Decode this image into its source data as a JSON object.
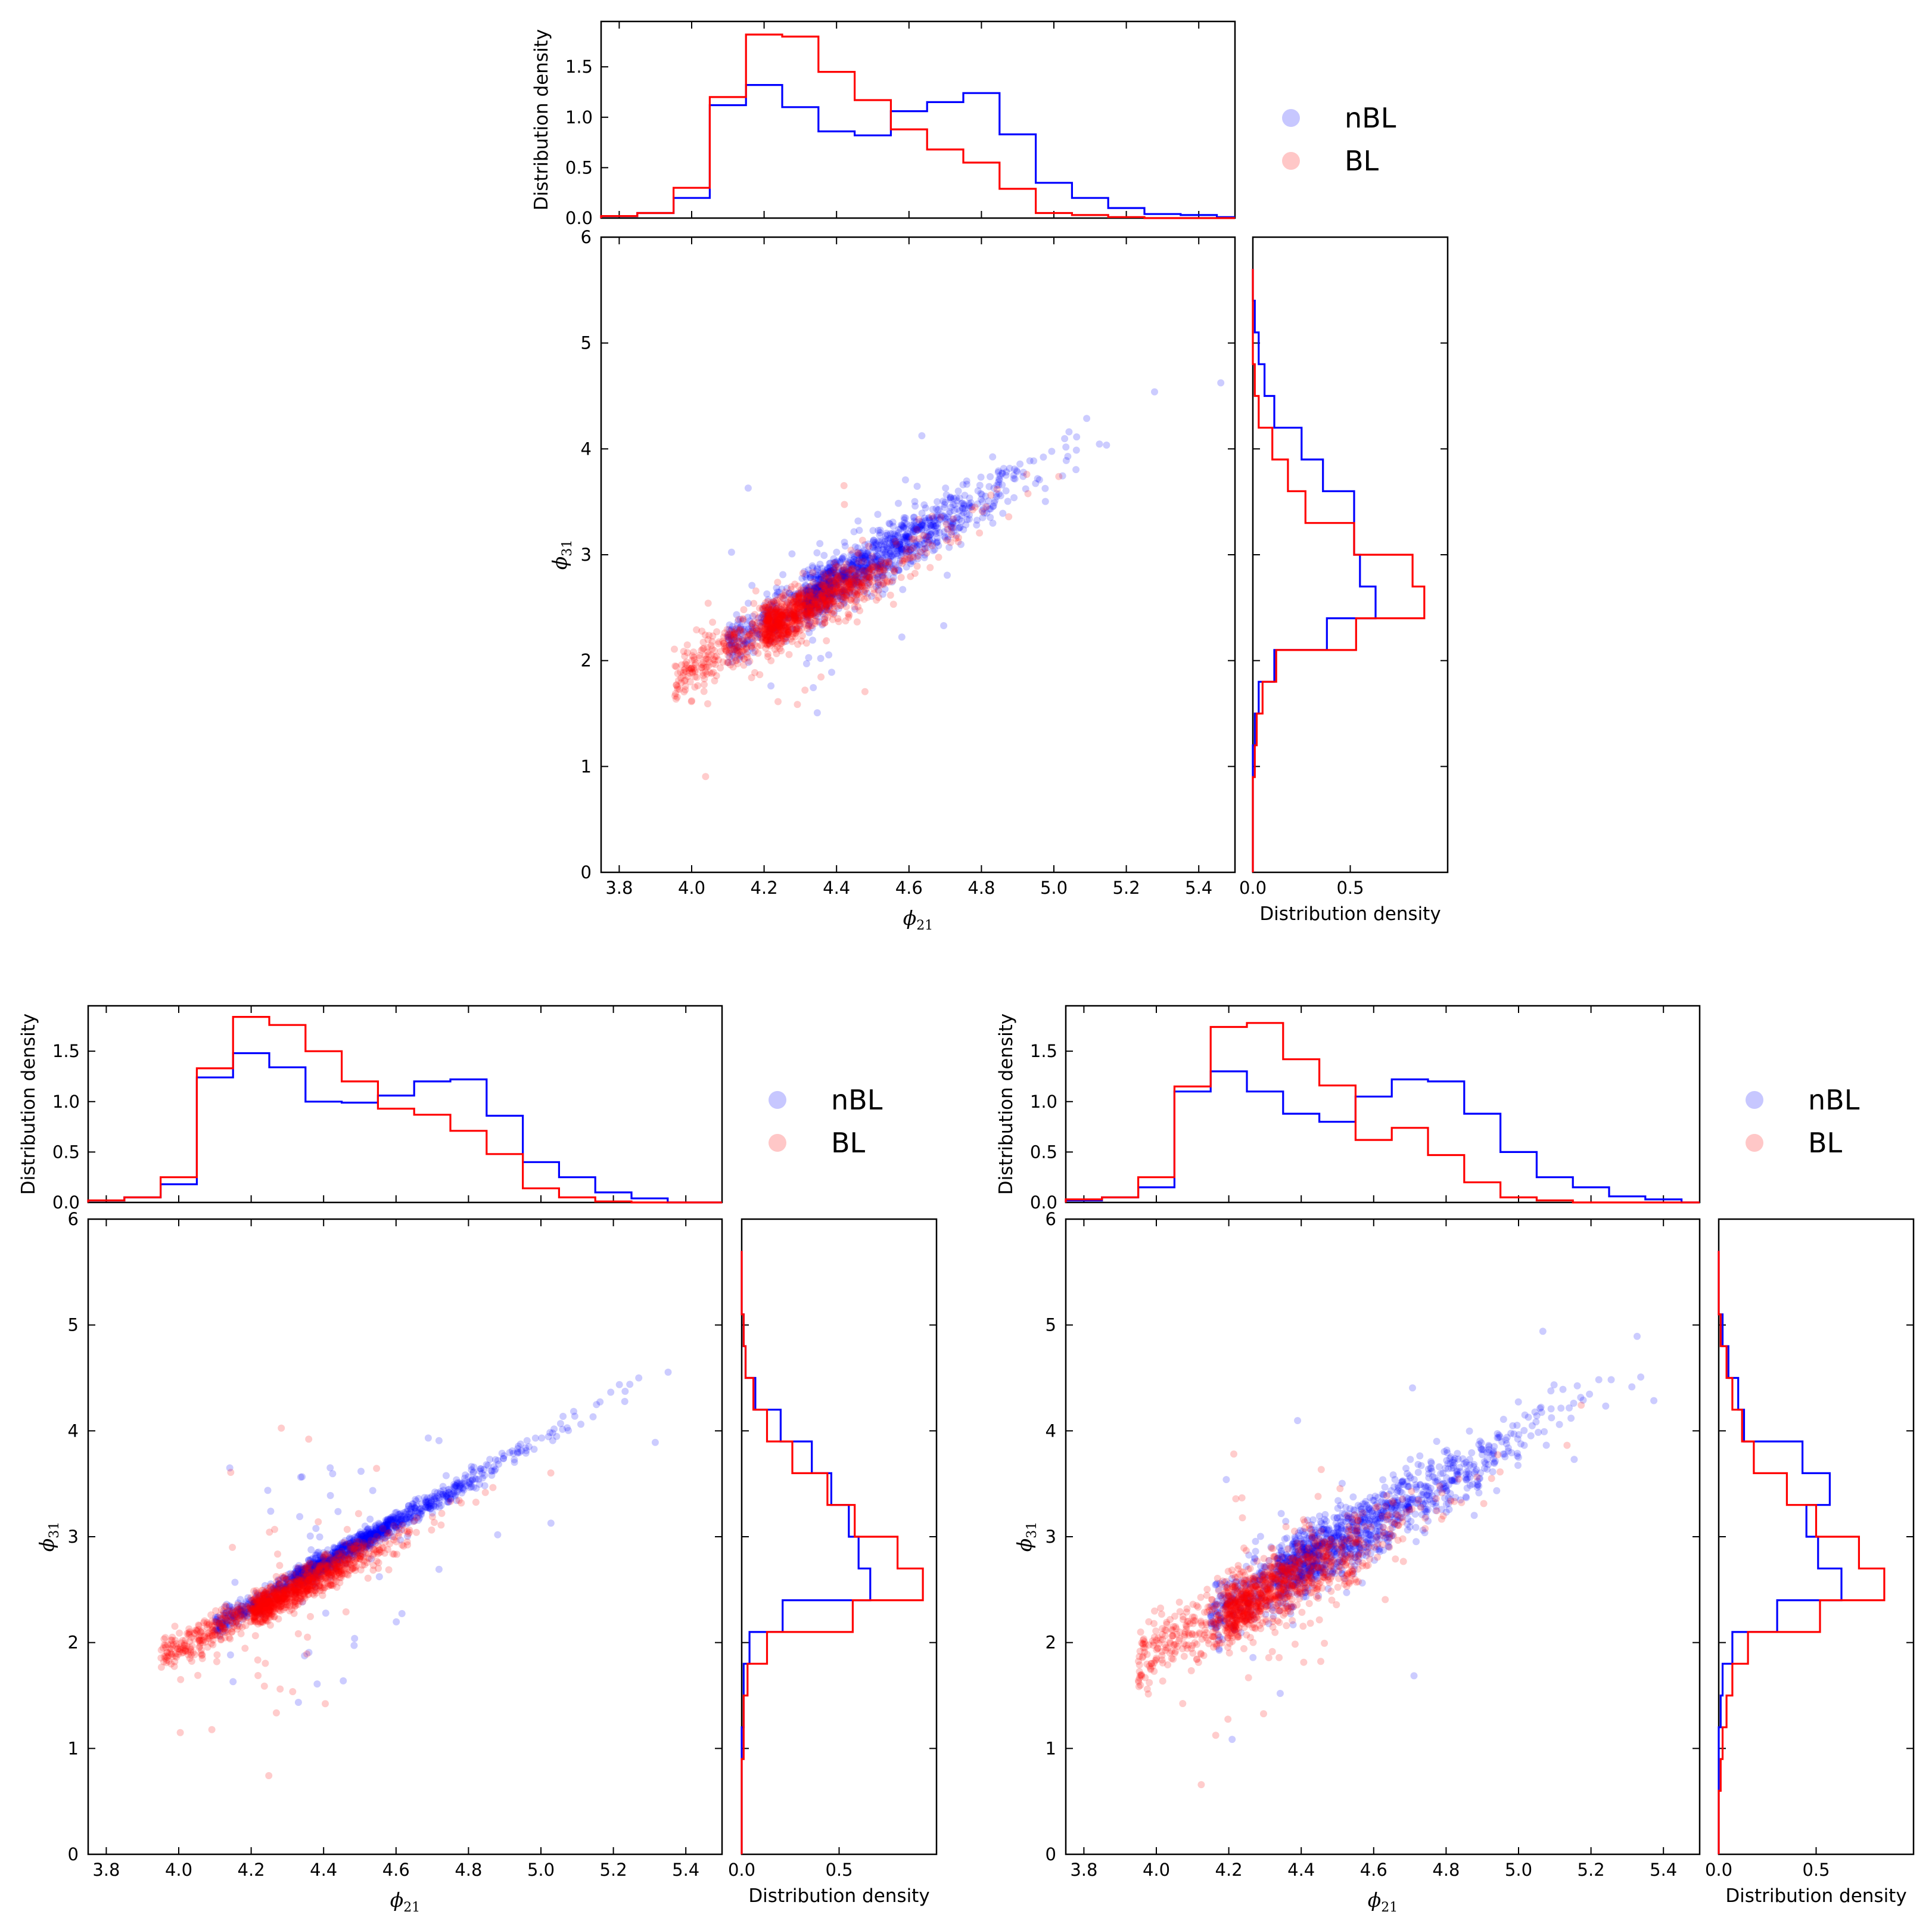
{
  "chart_data": [
    {
      "type": "scatter",
      "title": "",
      "xlabel": "ϕ21",
      "ylabel": "ϕ31",
      "top_hist_ylabel": "Distribution density",
      "right_hist_xlabel": "Distribution density",
      "xlim": [
        3.75,
        5.5
      ],
      "ylim": [
        0,
        6
      ],
      "grid": false,
      "legend": {
        "placement": "right of top histogram",
        "entries": [
          "nBL",
          "BL"
        ]
      },
      "series": [
        {
          "name": "nBL",
          "color": "#0000ff",
          "x_hist": {
            "edges": [
              3.75,
              3.85,
              3.95,
              4.05,
              4.15,
              4.25,
              4.35,
              4.45,
              4.55,
              4.65,
              4.75,
              4.85,
              4.95,
              5.05,
              5.15,
              5.25,
              5.35,
              5.45,
              5.5
            ],
            "density": [
              0.02,
              0.05,
              0.2,
              1.12,
              1.32,
              1.1,
              0.86,
              0.82,
              1.06,
              1.15,
              1.24,
              0.83,
              0.35,
              0.2,
              0.1,
              0.04,
              0.03,
              0.01
            ]
          },
          "y_hist": {
            "edges": [
              0,
              0.3,
              0.6,
              0.9,
              1.2,
              1.5,
              1.8,
              2.1,
              2.4,
              2.7,
              3.0,
              3.3,
              3.6,
              3.9,
              4.2,
              4.5,
              4.8,
              5.1,
              5.4,
              5.7
            ],
            "density": [
              0.0,
              0.0,
              0.0,
              0.0,
              0.01,
              0.03,
              0.11,
              0.38,
              0.63,
              0.55,
              0.52,
              0.52,
              0.36,
              0.25,
              0.11,
              0.06,
              0.03,
              0.01,
              0.0
            ]
          },
          "scatter": {
            "slope": 1.96,
            "intercept": -5.88,
            "x_center": 4.45,
            "x_spread": 0.25,
            "y_noise": 0.12,
            "n_points": 1400
          }
        },
        {
          "name": "BL",
          "color": "#ff0000",
          "x_hist": {
            "edges": [
              3.75,
              3.85,
              3.95,
              4.05,
              4.15,
              4.25,
              4.35,
              4.45,
              4.55,
              4.65,
              4.75,
              4.85,
              4.95,
              5.05,
              5.15,
              5.25,
              5.35,
              5.45,
              5.5
            ],
            "density": [
              0.02,
              0.05,
              0.3,
              1.2,
              1.82,
              1.8,
              1.45,
              1.17,
              0.88,
              0.68,
              0.55,
              0.29,
              0.05,
              0.03,
              0.01,
              0.0,
              0.0,
              0.0
            ]
          },
          "y_hist": {
            "edges": [
              0,
              0.3,
              0.6,
              0.9,
              1.2,
              1.5,
              1.8,
              2.1,
              2.4,
              2.7,
              3.0,
              3.3,
              3.6,
              3.9,
              4.2,
              4.5,
              4.8,
              5.1,
              5.4,
              5.7
            ],
            "density": [
              0.0,
              0.0,
              0.0,
              0.01,
              0.02,
              0.05,
              0.12,
              0.53,
              0.88,
              0.82,
              0.52,
              0.27,
              0.18,
              0.1,
              0.03,
              0.01,
              0.0,
              0.0,
              0.0
            ]
          },
          "scatter": {
            "slope": 1.75,
            "intercept": -5.06,
            "x_center": 4.3,
            "x_spread": 0.18,
            "y_noise": 0.12,
            "n_points": 1200
          }
        }
      ]
    },
    {
      "type": "scatter",
      "title": "",
      "xlabel": "ϕ21",
      "ylabel": "ϕ31",
      "top_hist_ylabel": "Distribution density",
      "right_hist_xlabel": "Distribution density",
      "xlim": [
        3.75,
        5.5
      ],
      "ylim": [
        0,
        6
      ],
      "grid": false,
      "legend": {
        "placement": "right of top histogram",
        "entries": [
          "nBL",
          "BL"
        ]
      },
      "series": [
        {
          "name": "nBL",
          "color": "#0000ff",
          "x_hist": {
            "edges": [
              3.75,
              3.85,
              3.95,
              4.05,
              4.15,
              4.25,
              4.35,
              4.45,
              4.55,
              4.65,
              4.75,
              4.85,
              4.95,
              5.05,
              5.15,
              5.25,
              5.35,
              5.45,
              5.5
            ],
            "density": [
              0.02,
              0.05,
              0.18,
              1.24,
              1.48,
              1.34,
              1.0,
              0.99,
              1.06,
              1.2,
              1.22,
              0.86,
              0.4,
              0.25,
              0.1,
              0.04,
              0.0,
              0.0
            ]
          },
          "y_hist": {
            "edges": [
              0,
              0.3,
              0.6,
              0.9,
              1.2,
              1.5,
              1.8,
              2.1,
              2.4,
              2.7,
              3.0,
              3.3,
              3.6,
              3.9,
              4.2,
              4.5,
              4.8,
              5.1,
              5.4,
              5.7
            ],
            "density": [
              0.0,
              0.0,
              0.0,
              0.0,
              0.01,
              0.01,
              0.04,
              0.21,
              0.66,
              0.6,
              0.55,
              0.46,
              0.36,
              0.2,
              0.07,
              0.02,
              0.01,
              0.0,
              0.0
            ]
          },
          "scatter": {
            "slope": 1.96,
            "intercept": -5.88,
            "x_center": 4.45,
            "x_spread": 0.24,
            "y_noise": 0.05,
            "n_points": 1400
          }
        },
        {
          "name": "BL",
          "color": "#ff0000",
          "x_hist": {
            "edges": [
              3.75,
              3.85,
              3.95,
              4.05,
              4.15,
              4.25,
              4.35,
              4.45,
              4.55,
              4.65,
              4.75,
              4.85,
              4.95,
              5.05,
              5.15,
              5.25,
              5.35,
              5.45,
              5.5
            ],
            "density": [
              0.02,
              0.05,
              0.25,
              1.33,
              1.84,
              1.76,
              1.5,
              1.2,
              0.93,
              0.87,
              0.71,
              0.48,
              0.14,
              0.05,
              0.01,
              0.0,
              0.0,
              0.0
            ]
          },
          "y_hist": {
            "edges": [
              0,
              0.3,
              0.6,
              0.9,
              1.2,
              1.5,
              1.8,
              2.1,
              2.4,
              2.7,
              3.0,
              3.3,
              3.6,
              3.9,
              4.2,
              4.5,
              4.8,
              5.1,
              5.4,
              5.7
            ],
            "density": [
              0.0,
              0.0,
              0.0,
              0.01,
              0.01,
              0.03,
              0.13,
              0.57,
              0.93,
              0.8,
              0.58,
              0.44,
              0.26,
              0.13,
              0.06,
              0.02,
              0.01,
              0.0,
              0.0
            ]
          },
          "scatter": {
            "slope": 1.75,
            "intercept": -5.06,
            "x_center": 4.3,
            "x_spread": 0.17,
            "y_noise": 0.08,
            "n_points": 1200
          }
        }
      ]
    },
    {
      "type": "scatter",
      "title": "",
      "xlabel": "ϕ21",
      "ylabel": "ϕ31",
      "top_hist_ylabel": "Distribution density",
      "right_hist_xlabel": "Distribution density",
      "xlim": [
        3.75,
        5.5
      ],
      "ylim": [
        0,
        6
      ],
      "grid": false,
      "legend": {
        "placement": "right of top histogram",
        "entries": [
          "nBL",
          "BL"
        ]
      },
      "series": [
        {
          "name": "nBL",
          "color": "#0000ff",
          "x_hist": {
            "edges": [
              3.75,
              3.85,
              3.95,
              4.05,
              4.15,
              4.25,
              4.35,
              4.45,
              4.55,
              4.65,
              4.75,
              4.85,
              4.95,
              5.05,
              5.15,
              5.25,
              5.35,
              5.45,
              5.5
            ],
            "density": [
              0.02,
              0.05,
              0.15,
              1.1,
              1.3,
              1.1,
              0.88,
              0.8,
              1.05,
              1.22,
              1.2,
              0.88,
              0.5,
              0.25,
              0.15,
              0.06,
              0.03,
              0.0
            ]
          },
          "y_hist": {
            "edges": [
              0,
              0.3,
              0.6,
              0.9,
              1.2,
              1.5,
              1.8,
              2.1,
              2.4,
              2.7,
              3.0,
              3.3,
              3.6,
              3.9,
              4.2,
              4.5,
              4.8,
              5.1,
              5.4,
              5.7
            ],
            "density": [
              0.0,
              0.0,
              0.0,
              0.0,
              0.01,
              0.02,
              0.07,
              0.3,
              0.63,
              0.51,
              0.45,
              0.57,
              0.43,
              0.13,
              0.1,
              0.05,
              0.02,
              0.0,
              0.0
            ]
          },
          "scatter": {
            "slope": 1.96,
            "intercept": -5.88,
            "x_center": 4.5,
            "x_spread": 0.3,
            "y_noise": 0.15,
            "n_points": 1400
          }
        },
        {
          "name": "BL",
          "color": "#ff0000",
          "x_hist": {
            "edges": [
              3.75,
              3.85,
              3.95,
              4.05,
              4.15,
              4.25,
              4.35,
              4.45,
              4.55,
              4.65,
              4.75,
              4.85,
              4.95,
              5.05,
              5.15,
              5.25,
              5.35,
              5.45,
              5.5
            ],
            "density": [
              0.03,
              0.05,
              0.25,
              1.15,
              1.74,
              1.78,
              1.42,
              1.16,
              0.62,
              0.74,
              0.47,
              0.2,
              0.05,
              0.02,
              0.0,
              0.0,
              0.0,
              0.0
            ]
          },
          "y_hist": {
            "edges": [
              0,
              0.3,
              0.6,
              0.9,
              1.2,
              1.5,
              1.8,
              2.1,
              2.4,
              2.7,
              3.0,
              3.3,
              3.6,
              3.9,
              4.2,
              4.5,
              4.8,
              5.1,
              5.4,
              5.7
            ],
            "density": [
              0.0,
              0.0,
              0.01,
              0.02,
              0.04,
              0.07,
              0.15,
              0.52,
              0.85,
              0.72,
              0.5,
              0.35,
              0.18,
              0.12,
              0.07,
              0.04,
              0.01,
              0.0,
              0.0
            ]
          },
          "scatter": {
            "slope": 1.75,
            "intercept": -5.06,
            "x_center": 4.3,
            "x_spread": 0.2,
            "y_noise": 0.16,
            "n_points": 1200
          }
        }
      ]
    }
  ]
}
